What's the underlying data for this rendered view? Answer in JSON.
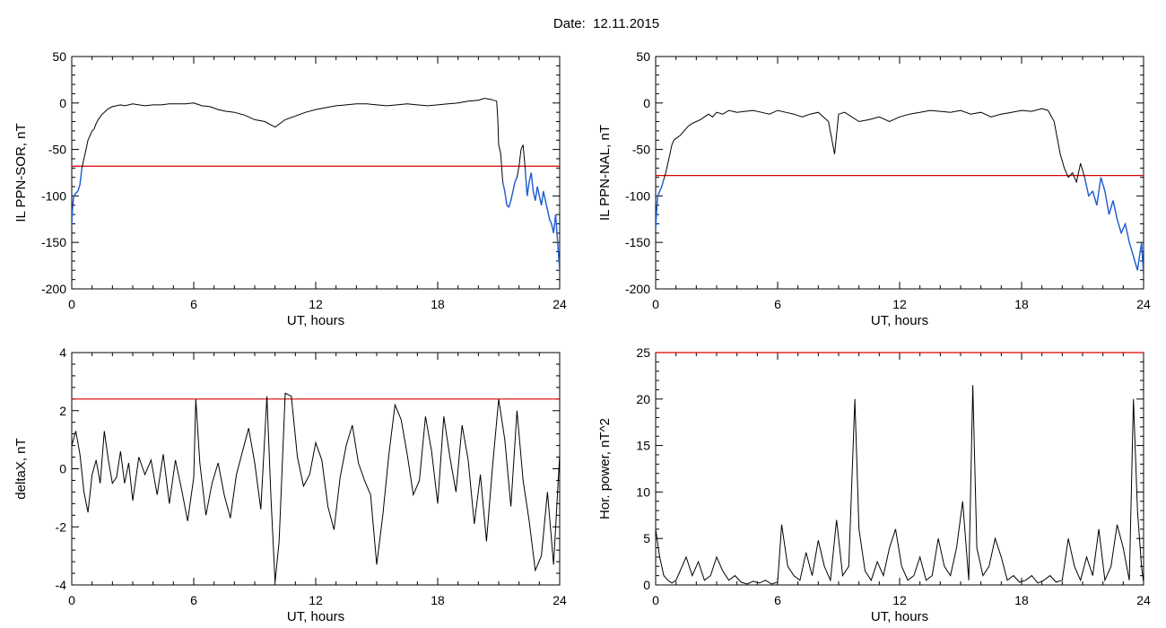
{
  "title": "Date:  12.11.2015",
  "chart_data": [
    {
      "id": "sor",
      "type": "line",
      "xlabel": "UT, hours",
      "ylabel": "IL PPN-SOR, nT",
      "xlim": [
        0,
        24
      ],
      "ylim": [
        -200,
        50
      ],
      "xticks": [
        0,
        6,
        12,
        18,
        24
      ],
      "yticks": [
        50,
        0,
        -50,
        -100,
        -150,
        -200
      ],
      "threshold": -68,
      "colors": {
        "line": "#000000",
        "highlight": "#1f5fd6",
        "threshold": "#dd0000"
      },
      "series": [
        {
          "x": [
            0,
            0.05,
            0.1,
            0.2,
            0.3,
            0.4,
            0.5,
            0.6,
            0.7,
            0.8,
            0.9,
            1.0,
            1.1,
            1.2,
            1.3,
            1.4,
            1.5,
            1.6,
            1.7,
            1.8,
            1.9,
            2.0,
            2.2,
            2.4,
            2.6,
            2.8,
            3.0,
            3.3,
            3.6,
            4.0,
            4.4,
            4.8,
            5.2,
            5.6,
            6.0,
            6.4,
            6.8,
            7.2,
            7.6,
            8.0,
            8.5,
            9.0,
            9.5,
            10.0,
            10.5,
            11.0,
            11.5,
            12.0,
            12.5,
            13.0,
            13.5,
            14.0,
            14.5,
            15.0,
            15.5,
            16.0,
            16.5,
            17.0,
            17.5,
            18.0,
            18.5,
            19.0,
            19.5,
            20.0,
            20.3,
            20.6,
            20.9,
            20.95,
            21.0,
            21.1,
            21.2,
            21.3,
            21.4,
            21.5,
            21.6,
            21.7,
            21.8,
            21.9,
            22.0,
            22.1,
            22.2,
            22.3,
            22.4,
            22.5,
            22.6,
            22.7,
            22.8,
            22.9,
            23.0,
            23.1,
            23.2,
            23.3,
            23.4,
            23.5,
            23.6,
            23.7,
            23.8,
            23.9,
            24.0
          ],
          "y": [
            -130,
            -110,
            -100,
            -97,
            -95,
            -88,
            -70,
            -60,
            -50,
            -40,
            -35,
            -30,
            -28,
            -22,
            -18,
            -15,
            -12,
            -10,
            -8,
            -6,
            -5,
            -4,
            -3,
            -2,
            -3,
            -2,
            -1,
            -2,
            -3,
            -2,
            -2,
            -1,
            -1,
            -1,
            0,
            -3,
            -4,
            -7,
            -9,
            -10,
            -13,
            -18,
            -20,
            -26,
            -18,
            -14,
            -10,
            -7,
            -5,
            -3,
            -2,
            -1,
            -1,
            -2,
            -3,
            -2,
            -1,
            -2,
            -3,
            -2,
            -1,
            0,
            2,
            3,
            5,
            4,
            2,
            -15,
            -45,
            -55,
            -85,
            -95,
            -110,
            -112,
            -105,
            -95,
            -85,
            -80,
            -68,
            -50,
            -45,
            -70,
            -100,
            -85,
            -75,
            -95,
            -105,
            -90,
            -100,
            -110,
            -95,
            -105,
            -115,
            -125,
            -130,
            -140,
            -120,
            -150,
            -180
          ]
        }
      ]
    },
    {
      "id": "nal",
      "type": "line",
      "xlabel": "UT, hours",
      "ylabel": "IL PPN-NAL, nT",
      "xlim": [
        0,
        24
      ],
      "ylim": [
        -200,
        50
      ],
      "xticks": [
        0,
        6,
        12,
        18,
        24
      ],
      "yticks": [
        50,
        0,
        -50,
        -100,
        -150,
        -200
      ],
      "threshold": -78,
      "colors": {
        "line": "#000000",
        "highlight": "#1f5fd6",
        "threshold": "#dd0000"
      },
      "series": [
        {
          "x": [
            0,
            0.05,
            0.1,
            0.2,
            0.3,
            0.4,
            0.5,
            0.6,
            0.7,
            0.8,
            0.9,
            1.0,
            1.2,
            1.4,
            1.6,
            1.8,
            2.0,
            2.2,
            2.4,
            2.6,
            2.8,
            3.0,
            3.3,
            3.6,
            4.0,
            4.4,
            4.8,
            5.2,
            5.6,
            6.0,
            6.4,
            6.8,
            7.2,
            7.6,
            8.0,
            8.5,
            8.8,
            9.0,
            9.3,
            10.0,
            10.5,
            11.0,
            11.5,
            12.0,
            12.5,
            13.0,
            13.5,
            14.0,
            14.5,
            15.0,
            15.5,
            16.0,
            16.5,
            17.0,
            17.5,
            18.0,
            18.5,
            19.0,
            19.3,
            19.6,
            19.9,
            20.1,
            20.3,
            20.5,
            20.7,
            20.9,
            21.1,
            21.3,
            21.5,
            21.7,
            21.9,
            22.1,
            22.3,
            22.5,
            22.7,
            22.9,
            23.1,
            23.3,
            23.5,
            23.7,
            23.9,
            24.0
          ],
          "y": [
            -135,
            -115,
            -100,
            -95,
            -90,
            -82,
            -75,
            -65,
            -55,
            -45,
            -40,
            -38,
            -35,
            -30,
            -25,
            -22,
            -20,
            -18,
            -15,
            -12,
            -15,
            -10,
            -12,
            -8,
            -10,
            -9,
            -8,
            -10,
            -12,
            -8,
            -10,
            -12,
            -15,
            -12,
            -10,
            -20,
            -55,
            -12,
            -10,
            -20,
            -18,
            -15,
            -20,
            -15,
            -12,
            -10,
            -8,
            -9,
            -10,
            -8,
            -12,
            -10,
            -15,
            -12,
            -10,
            -8,
            -9,
            -6,
            -8,
            -20,
            -55,
            -70,
            -80,
            -75,
            -85,
            -65,
            -80,
            -100,
            -95,
            -110,
            -80,
            -95,
            -120,
            -105,
            -125,
            -140,
            -130,
            -150,
            -165,
            -180,
            -150,
            -185
          ]
        }
      ]
    },
    {
      "id": "deltax",
      "type": "line",
      "xlabel": "UT, hours",
      "ylabel": "deltaX, nT",
      "xlim": [
        0,
        24
      ],
      "ylim": [
        -4,
        4
      ],
      "xticks": [
        0,
        6,
        12,
        18,
        24
      ],
      "yticks": [
        4,
        2,
        0,
        -2,
        -4
      ],
      "threshold": 2.4,
      "colors": {
        "line": "#000000",
        "threshold": "#dd0000"
      },
      "series": [
        {
          "x": [
            0,
            0.2,
            0.4,
            0.6,
            0.8,
            1.0,
            1.2,
            1.4,
            1.6,
            1.8,
            2.0,
            2.2,
            2.4,
            2.6,
            2.8,
            3.0,
            3.3,
            3.6,
            3.9,
            4.2,
            4.5,
            4.8,
            5.1,
            5.4,
            5.7,
            6.0,
            6.1,
            6.3,
            6.6,
            6.9,
            7.2,
            7.5,
            7.8,
            8.1,
            8.4,
            8.7,
            9.0,
            9.3,
            9.6,
            9.8,
            10.0,
            10.2,
            10.5,
            10.8,
            11.1,
            11.4,
            11.7,
            12.0,
            12.3,
            12.6,
            12.9,
            13.2,
            13.5,
            13.8,
            14.1,
            14.4,
            14.7,
            15.0,
            15.3,
            15.6,
            15.9,
            16.2,
            16.5,
            16.8,
            17.1,
            17.4,
            17.7,
            18.0,
            18.3,
            18.6,
            18.9,
            19.2,
            19.5,
            19.8,
            20.1,
            20.4,
            20.7,
            21.0,
            21.3,
            21.6,
            21.9,
            22.2,
            22.5,
            22.8,
            23.1,
            23.4,
            23.7,
            24.0
          ],
          "y": [
            0.8,
            1.3,
            0.5,
            -0.8,
            -1.5,
            -0.2,
            0.3,
            -0.5,
            1.3,
            0.3,
            -0.5,
            -0.3,
            0.6,
            -0.5,
            0.2,
            -1.1,
            0.4,
            -0.2,
            0.3,
            -0.9,
            0.5,
            -1.2,
            0.3,
            -0.7,
            -1.8,
            -0.3,
            2.4,
            0.2,
            -1.6,
            -0.5,
            0.2,
            -0.9,
            -1.7,
            -0.2,
            0.6,
            1.4,
            0.2,
            -1.4,
            2.5,
            -1.0,
            -3.9,
            -2.5,
            2.6,
            2.5,
            0.4,
            -0.6,
            -0.2,
            0.9,
            0.3,
            -1.3,
            -2.1,
            -0.3,
            0.8,
            1.5,
            0.2,
            -0.4,
            -0.9,
            -3.3,
            -1.6,
            0.5,
            2.2,
            1.7,
            0.5,
            -0.9,
            -0.4,
            1.8,
            0.6,
            -1.2,
            1.8,
            0.4,
            -0.8,
            1.5,
            0.3,
            -1.9,
            -0.2,
            -2.5,
            0.1,
            2.4,
            1.0,
            -1.3,
            2.0,
            -0.4,
            -1.8,
            -3.5,
            -3.0,
            -0.8,
            -3.3,
            0.5
          ]
        }
      ]
    },
    {
      "id": "power",
      "type": "line",
      "xlabel": "UT, hours",
      "ylabel": "Hor. power, nT^2",
      "xlim": [
        0,
        24
      ],
      "ylim": [
        0,
        25
      ],
      "xticks": [
        0,
        6,
        12,
        18,
        24
      ],
      "yticks": [
        25,
        20,
        15,
        10,
        5,
        0
      ],
      "threshold": 25,
      "colors": {
        "line": "#000000",
        "threshold": "#dd0000"
      },
      "series": [
        {
          "x": [
            0,
            0.2,
            0.4,
            0.6,
            0.8,
            1.0,
            1.2,
            1.5,
            1.8,
            2.1,
            2.4,
            2.7,
            3.0,
            3.3,
            3.6,
            3.9,
            4.2,
            4.5,
            4.8,
            5.1,
            5.4,
            5.7,
            6.0,
            6.2,
            6.5,
            6.8,
            7.1,
            7.4,
            7.7,
            8.0,
            8.3,
            8.6,
            8.9,
            9.2,
            9.5,
            9.8,
            10.0,
            10.3,
            10.6,
            10.9,
            11.2,
            11.5,
            11.8,
            12.1,
            12.4,
            12.7,
            13.0,
            13.3,
            13.6,
            13.9,
            14.2,
            14.5,
            14.8,
            15.1,
            15.4,
            15.6,
            15.8,
            16.1,
            16.4,
            16.7,
            17.0,
            17.3,
            17.6,
            17.9,
            18.2,
            18.5,
            18.8,
            19.1,
            19.4,
            19.7,
            20.0,
            20.3,
            20.6,
            20.9,
            21.2,
            21.5,
            21.8,
            22.1,
            22.4,
            22.7,
            23.0,
            23.3,
            23.5,
            23.7,
            23.9,
            24.0
          ],
          "y": [
            6,
            3,
            1,
            0.5,
            0.2,
            0.5,
            1.5,
            3,
            1,
            2.5,
            0.5,
            1,
            3,
            1.5,
            0.5,
            1,
            0.3,
            0.1,
            0.4,
            0.2,
            0.5,
            0.1,
            0.3,
            6.5,
            2,
            1,
            0.5,
            3.5,
            1,
            4.8,
            2,
            0.5,
            7,
            1,
            2,
            20,
            6,
            1.5,
            0.5,
            2.5,
            1,
            4,
            6,
            2,
            0.5,
            1,
            3,
            0.5,
            1,
            5,
            2,
            1,
            4,
            9,
            0.5,
            21.5,
            4,
            1,
            2,
            5,
            3,
            0.5,
            1,
            0.3,
            0.5,
            1,
            0.2,
            0.5,
            1,
            0.3,
            0.5,
            5,
            2,
            0.5,
            3,
            1,
            6,
            0.5,
            2,
            6.5,
            4,
            0.5,
            20,
            8,
            2,
            0.3
          ]
        }
      ]
    }
  ]
}
